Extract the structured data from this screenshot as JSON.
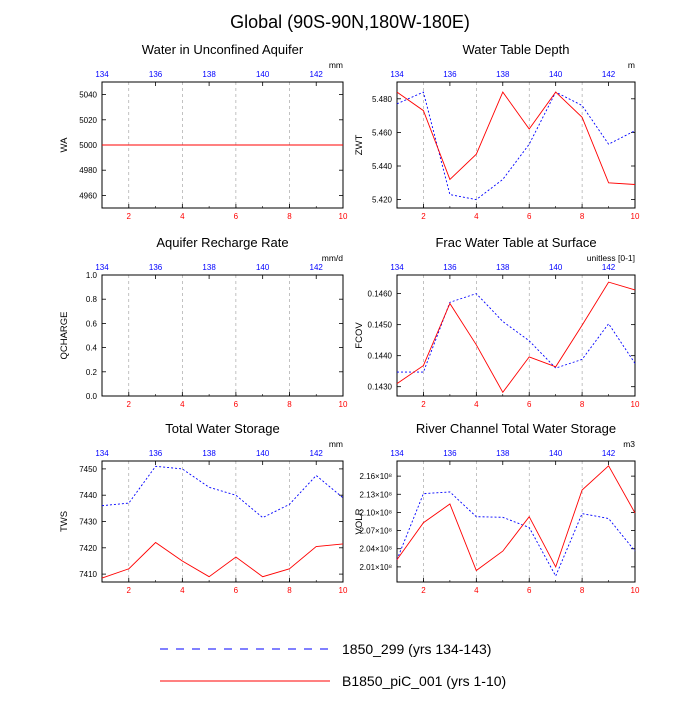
{
  "title": "Global (90S-90N,180W-180E)",
  "colors": {
    "series1": "#0000ff",
    "series2": "#ff0000",
    "frame": "#000000",
    "grid": "#999999"
  },
  "legend": {
    "items": [
      {
        "label": "1850_299 (yrs 134-143)",
        "style": "dashed",
        "color": "#0000ff"
      },
      {
        "label": "B1850_piC_001 (yrs 1-10)",
        "style": "solid",
        "color": "#ff0000"
      }
    ]
  },
  "chart_data": [
    {
      "type": "line",
      "title": "Water in Unconfined Aquifer",
      "units": "mm",
      "ylabel": "WA",
      "ylim": [
        4950,
        5050
      ],
      "yticks": [
        4960,
        4980,
        5000,
        5020,
        5040
      ],
      "ytick_labels": [
        "4960",
        "4980",
        "5000",
        "5020",
        "5040"
      ],
      "x_bottom": {
        "lim": [
          1,
          10
        ],
        "ticks": [
          2,
          4,
          6,
          8,
          10
        ],
        "labels": [
          "2",
          "4",
          "6",
          "8",
          "10"
        ]
      },
      "x_top": {
        "ticks": [
          134,
          136,
          138,
          140,
          142
        ],
        "labels": [
          "134",
          "136",
          "138",
          "140",
          "142"
        ]
      },
      "series": [
        {
          "name": "1850_299 (yrs 134-143)",
          "x": [
            1,
            2,
            3,
            4,
            5,
            6,
            7,
            8,
            9,
            10
          ],
          "values": [
            5000,
            5000,
            5000,
            5000,
            5000,
            5000,
            5000,
            5000,
            5000,
            5000
          ]
        },
        {
          "name": "B1850_piC_001 (yrs 1-10)",
          "x": [
            1,
            2,
            3,
            4,
            5,
            6,
            7,
            8,
            9,
            10
          ],
          "values": [
            5000,
            5000,
            5000,
            5000,
            5000,
            5000,
            5000,
            5000,
            5000,
            5000
          ]
        }
      ]
    },
    {
      "type": "line",
      "title": "Water Table Depth",
      "units": "m",
      "ylabel": "ZWT",
      "ylim": [
        5.415,
        5.49
      ],
      "yticks": [
        5.42,
        5.44,
        5.46,
        5.48
      ],
      "ytick_labels": [
        "5.420",
        "5.440",
        "5.460",
        "5.480"
      ],
      "x_bottom": {
        "lim": [
          1,
          10
        ],
        "ticks": [
          2,
          4,
          6,
          8,
          10
        ],
        "labels": [
          "2",
          "4",
          "6",
          "8",
          "10"
        ]
      },
      "x_top": {
        "ticks": [
          134,
          136,
          138,
          140,
          142
        ],
        "labels": [
          "134",
          "136",
          "138",
          "140",
          "142"
        ]
      },
      "series": [
        {
          "name": "1850_299 (yrs 134-143)",
          "x": [
            1,
            2,
            3,
            4,
            5,
            6,
            7,
            8,
            9,
            10
          ],
          "values": [
            5.477,
            5.484,
            5.423,
            5.42,
            5.432,
            5.453,
            5.484,
            5.476,
            5.453,
            5.461
          ]
        },
        {
          "name": "B1850_piC_001 (yrs 1-10)",
          "x": [
            1,
            2,
            3,
            4,
            5,
            6,
            7,
            8,
            9,
            10
          ],
          "values": [
            5.484,
            5.473,
            5.432,
            5.447,
            5.484,
            5.462,
            5.484,
            5.469,
            5.43,
            5.429
          ]
        }
      ]
    },
    {
      "type": "line",
      "title": "Aquifer Recharge Rate",
      "units": "mm/d",
      "ylabel": "QCHARGE",
      "ylim": [
        0,
        1
      ],
      "yticks": [
        0,
        0.2,
        0.4,
        0.6,
        0.8,
        1.0
      ],
      "ytick_labels": [
        "0.0",
        "0.2",
        "0.4",
        "0.6",
        "0.8",
        "1.0"
      ],
      "x_bottom": {
        "lim": [
          1,
          10
        ],
        "ticks": [
          2,
          4,
          6,
          8,
          10
        ],
        "labels": [
          "2",
          "4",
          "6",
          "8",
          "10"
        ]
      },
      "x_top": {
        "ticks": [
          134,
          136,
          138,
          140,
          142
        ],
        "labels": [
          "134",
          "136",
          "138",
          "140",
          "142"
        ]
      },
      "series": []
    },
    {
      "type": "line",
      "title": "Frac Water Table at Surface",
      "units": "unitless [0-1]",
      "ylabel": "FCOV",
      "ylim": [
        0.1427,
        0.1466
      ],
      "yticks": [
        0.143,
        0.144,
        0.145,
        0.146
      ],
      "ytick_labels": [
        "0.1430",
        "0.1440",
        "0.1450",
        "0.1460"
      ],
      "x_bottom": {
        "lim": [
          1,
          10
        ],
        "ticks": [
          2,
          4,
          6,
          8,
          10
        ],
        "labels": [
          "2",
          "4",
          "6",
          "8",
          "10"
        ]
      },
      "x_top": {
        "ticks": [
          134,
          136,
          138,
          140,
          142
        ],
        "labels": [
          "134",
          "136",
          "138",
          "140",
          "142"
        ]
      },
      "series": [
        {
          "name": "1850_299 (yrs 134-143)",
          "x": [
            1,
            2,
            3,
            4,
            5,
            6,
            7,
            8,
            9,
            10
          ],
          "values": [
            0.14347,
            0.14347,
            0.14572,
            0.146,
            0.1451,
            0.14448,
            0.1436,
            0.14388,
            0.14503,
            0.14375
          ]
        },
        {
          "name": "B1850_piC_001 (yrs 1-10)",
          "x": [
            1,
            2,
            3,
            4,
            5,
            6,
            7,
            8,
            9,
            10
          ],
          "values": [
            0.1431,
            0.14368,
            0.14568,
            0.14435,
            0.14282,
            0.14396,
            0.14364,
            0.14498,
            0.14637,
            0.14612
          ]
        }
      ]
    },
    {
      "type": "line",
      "title": "Total Water Storage",
      "units": "mm",
      "ylabel": "TWS",
      "ylim": [
        7407,
        7453
      ],
      "yticks": [
        7410,
        7420,
        7430,
        7440,
        7450
      ],
      "ytick_labels": [
        "7410",
        "7420",
        "7430",
        "7440",
        "7450"
      ],
      "x_bottom": {
        "lim": [
          1,
          10
        ],
        "ticks": [
          2,
          4,
          6,
          8,
          10
        ],
        "labels": [
          "2",
          "4",
          "6",
          "8",
          "10"
        ]
      },
      "x_top": {
        "ticks": [
          134,
          136,
          138,
          140,
          142
        ],
        "labels": [
          "134",
          "136",
          "138",
          "140",
          "142"
        ]
      },
      "series": [
        {
          "name": "1850_299 (yrs 134-143)",
          "x": [
            1,
            2,
            3,
            4,
            5,
            6,
            7,
            8,
            9,
            10
          ],
          "values": [
            7436,
            7437,
            7451,
            7450,
            7443,
            7440,
            7431.5,
            7436.5,
            7447.5,
            7439
          ]
        },
        {
          "name": "B1850_piC_001 (yrs 1-10)",
          "x": [
            1,
            2,
            3,
            4,
            5,
            6,
            7,
            8,
            9,
            10
          ],
          "values": [
            7408.5,
            7412,
            7422,
            7415,
            7409,
            7416.5,
            7409,
            7412,
            7420.5,
            7421.5
          ]
        }
      ]
    },
    {
      "type": "line",
      "title": "River Channel Total Water Storage",
      "units": "m3",
      "ylabel": "VOLR",
      "ylim": [
        198500000.0,
        218500000.0
      ],
      "yticks": [
        201000000.0,
        204000000.0,
        207000000.0,
        210000000.0,
        213000000.0,
        216000000.0
      ],
      "ytick_labels": [
        "2.01×10⁸",
        "2.04×10⁸",
        "2.07×10⁸",
        "2.10×10⁸",
        "2.13×10⁸",
        "2.16×10⁸"
      ],
      "x_bottom": {
        "lim": [
          1,
          10
        ],
        "ticks": [
          2,
          4,
          6,
          8,
          10
        ],
        "labels": [
          "2",
          "4",
          "6",
          "8",
          "10"
        ]
      },
      "x_top": {
        "ticks": [
          134,
          136,
          138,
          140,
          142
        ],
        "labels": [
          "134",
          "136",
          "138",
          "140",
          "142"
        ]
      },
      "series": [
        {
          "name": "1850_299 (yrs 134-143)",
          "x": [
            1,
            2,
            3,
            4,
            5,
            6,
            7,
            8,
            9,
            10
          ],
          "values": [
            202200000.0,
            213100000.0,
            213400000.0,
            209300000.0,
            209200000.0,
            207500000.0,
            199500000.0,
            209800000.0,
            209000000.0,
            203600000.0
          ]
        },
        {
          "name": "B1850_piC_001 (yrs 1-10)",
          "x": [
            1,
            2,
            3,
            4,
            5,
            6,
            7,
            8,
            9,
            10
          ],
          "values": [
            202200000.0,
            208300000.0,
            211400000.0,
            200400000.0,
            203600000.0,
            209300000.0,
            201000000.0,
            213700000.0,
            217700000.0,
            209900000.0
          ]
        }
      ]
    }
  ]
}
